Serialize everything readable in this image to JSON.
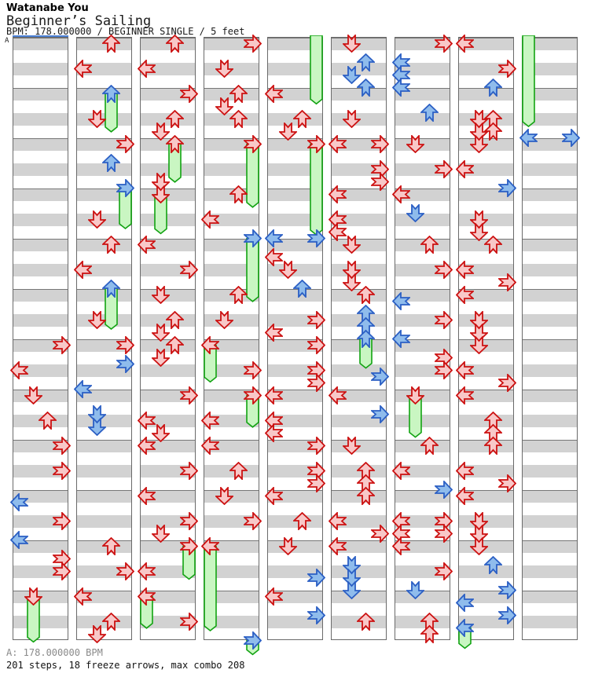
{
  "header": {
    "artist": "Watanabe You",
    "title": "Beginner’s Sailing",
    "meta": "BPM: 178.000000 / BEGINNER SINGLE / 5 feet"
  },
  "footer": {
    "bpm_line": "A: 178.000000 BPM",
    "stats_line": "201 steps, 18 freeze arrows, max combo 208"
  },
  "marker": {
    "label": "A",
    "line_color": "#4a7fd4"
  },
  "colors": {
    "stripe_gray": "#d2d2d2",
    "column_border": "#6a6a6a",
    "measure_line": "#777777",
    "red_stroke": "#cc1111",
    "red_fill": "#f8c8c8",
    "blue_stroke": "#2b5fc4",
    "blue_fill": "#8fbcec",
    "freeze_stroke": "#12a312",
    "freeze_fill": "#c9f6c2"
  },
  "chart_data": {
    "type": "ddr-step-chart",
    "title": "Beginner’s Sailing",
    "artist": "Watanabe You",
    "bpm": 178.0,
    "difficulty": "BEGINNER SINGLE",
    "rating": "5 feet",
    "steps": 201,
    "freeze_arrows": 18,
    "max_combo": 208,
    "columns": 9,
    "rows_per_column": 48,
    "beats_per_measure": 4,
    "lanes": [
      "left",
      "down",
      "up",
      "right"
    ],
    "note_legend": {
      "r": "red quarter note",
      "b": "blue eighth note",
      "freeze": "green hold body"
    },
    "notes": [
      [
        [
          24,
          3,
          "r"
        ],
        [
          26,
          0,
          "r"
        ],
        [
          28,
          1,
          "r"
        ],
        [
          30,
          2,
          "r"
        ],
        [
          32,
          3,
          "r"
        ],
        [
          34,
          3,
          "r"
        ],
        [
          36.5,
          0,
          "b"
        ],
        [
          38,
          3,
          "r"
        ],
        [
          39.5,
          0,
          "b"
        ],
        [
          41,
          3,
          "r"
        ],
        [
          42,
          3,
          "r"
        ],
        [
          44,
          1,
          "r",
          3.4
        ]
      ],
      [
        [
          0,
          2,
          "r"
        ],
        [
          2,
          0,
          "r"
        ],
        [
          4,
          2,
          "b",
          2.8
        ],
        [
          6,
          1,
          "r"
        ],
        [
          8,
          3,
          "r"
        ],
        [
          9.5,
          2,
          "b"
        ],
        [
          11.5,
          3,
          "b",
          3.0
        ],
        [
          14,
          1,
          "r"
        ],
        [
          16,
          2,
          "r"
        ],
        [
          18,
          0,
          "r"
        ],
        [
          19.5,
          2,
          "b",
          3.0
        ],
        [
          22,
          1,
          "r"
        ],
        [
          24,
          3,
          "r"
        ],
        [
          25.5,
          3,
          "b"
        ],
        [
          27.5,
          0,
          "b"
        ],
        [
          29.5,
          1,
          "b"
        ],
        [
          30.5,
          1,
          "b"
        ],
        [
          40,
          2,
          "r"
        ],
        [
          42,
          3,
          "r"
        ],
        [
          44,
          0,
          "r"
        ],
        [
          46,
          2,
          "r"
        ],
        [
          47,
          1,
          "r"
        ]
      ],
      [
        [
          0,
          2,
          "r"
        ],
        [
          2,
          0,
          "r"
        ],
        [
          4,
          3,
          "r"
        ],
        [
          6,
          2,
          "r"
        ],
        [
          7,
          1,
          "r"
        ],
        [
          8,
          2,
          "r",
          2.8
        ],
        [
          11,
          1,
          "r"
        ],
        [
          12,
          1,
          "r",
          2.9
        ],
        [
          16,
          0,
          "r"
        ],
        [
          18,
          3,
          "r"
        ],
        [
          20,
          1,
          "r"
        ],
        [
          22,
          2,
          "r"
        ],
        [
          23,
          1,
          "r"
        ],
        [
          24,
          2,
          "r"
        ],
        [
          25,
          1,
          "r"
        ],
        [
          28,
          3,
          "r"
        ],
        [
          30,
          0,
          "r"
        ],
        [
          31,
          1,
          "r"
        ],
        [
          32,
          0,
          "r"
        ],
        [
          34,
          3,
          "r"
        ],
        [
          36,
          0,
          "r"
        ],
        [
          38,
          3,
          "r"
        ],
        [
          39,
          1,
          "r"
        ],
        [
          40,
          3,
          "r",
          2.4
        ],
        [
          42,
          0,
          "r"
        ],
        [
          44,
          0,
          "r",
          2.3
        ],
        [
          46,
          3,
          "r"
        ]
      ],
      [
        [
          0,
          3,
          "r"
        ],
        [
          2,
          1,
          "r"
        ],
        [
          4,
          2,
          "r"
        ],
        [
          5,
          1,
          "r"
        ],
        [
          6,
          2,
          "r"
        ],
        [
          8,
          3,
          "r",
          4.8
        ],
        [
          12,
          2,
          "r"
        ],
        [
          14,
          0,
          "r"
        ],
        [
          15.5,
          3,
          "b",
          4.8
        ],
        [
          20,
          2,
          "r"
        ],
        [
          22,
          1,
          "r"
        ],
        [
          24,
          0,
          "r",
          2.7
        ],
        [
          26,
          3,
          "r"
        ],
        [
          28,
          3,
          "r",
          2.3
        ],
        [
          30,
          0,
          "r"
        ],
        [
          32,
          0,
          "r"
        ],
        [
          34,
          2,
          "r"
        ],
        [
          36,
          1,
          "r"
        ],
        [
          38,
          3,
          "r"
        ],
        [
          40,
          0,
          "r",
          6.5
        ],
        [
          47.5,
          3,
          "b",
          0.9
        ]
      ],
      [
        [
          4,
          0,
          "r"
        ],
        [
          6,
          2,
          "r"
        ],
        [
          7,
          1,
          "r"
        ],
        [
          8,
          3,
          "r",
          7.0
        ],
        [
          15.5,
          0,
          "b"
        ],
        [
          15.5,
          3,
          "b"
        ],
        [
          17,
          0,
          "r"
        ],
        [
          18,
          1,
          "r"
        ],
        [
          19.5,
          2,
          "b"
        ],
        [
          22,
          3,
          "r"
        ],
        [
          23,
          0,
          "r"
        ],
        [
          24,
          3,
          "r"
        ],
        [
          26,
          3,
          "r"
        ],
        [
          27,
          3,
          "r"
        ],
        [
          28,
          0,
          "r"
        ],
        [
          30,
          0,
          "r"
        ],
        [
          31,
          0,
          "r"
        ],
        [
          32,
          3,
          "r"
        ],
        [
          34,
          3,
          "r"
        ],
        [
          35,
          3,
          "r"
        ],
        [
          36,
          0,
          "r"
        ],
        [
          38,
          2,
          "r"
        ],
        [
          40,
          1,
          "r"
        ],
        [
          42.5,
          3,
          "b"
        ],
        [
          44,
          0,
          "r"
        ],
        [
          45.5,
          3,
          "b"
        ]
      ],
      [
        [
          0,
          1,
          "r"
        ],
        [
          1.5,
          2,
          "b"
        ],
        [
          2.5,
          1,
          "b"
        ],
        [
          3.5,
          2,
          "b"
        ],
        [
          6,
          1,
          "r"
        ],
        [
          8,
          0,
          "r"
        ],
        [
          8,
          3,
          "r"
        ],
        [
          10,
          3,
          "r"
        ],
        [
          11,
          3,
          "r"
        ],
        [
          12,
          0,
          "r"
        ],
        [
          14,
          0,
          "r"
        ],
        [
          15,
          0,
          "r"
        ],
        [
          16,
          1,
          "r"
        ],
        [
          18,
          1,
          "r"
        ],
        [
          19,
          1,
          "r"
        ],
        [
          20,
          2,
          "r"
        ],
        [
          21.5,
          2,
          "b"
        ],
        [
          22.5,
          2,
          "b"
        ],
        [
          23.5,
          2,
          "b",
          2.1
        ],
        [
          26.5,
          3,
          "b"
        ],
        [
          28,
          0,
          "r"
        ],
        [
          29.5,
          3,
          "b"
        ],
        [
          32,
          1,
          "r"
        ],
        [
          34,
          2,
          "r"
        ],
        [
          35,
          2,
          "r"
        ],
        [
          36,
          2,
          "r"
        ],
        [
          38,
          0,
          "r"
        ],
        [
          39,
          3,
          "r"
        ],
        [
          40,
          0,
          "r"
        ],
        [
          41.5,
          1,
          "b"
        ],
        [
          42.5,
          1,
          "b"
        ],
        [
          43.5,
          1,
          "b"
        ],
        [
          46,
          2,
          "r"
        ]
      ],
      [
        [
          0,
          3,
          "r"
        ],
        [
          1.5,
          0,
          "b"
        ],
        [
          2.5,
          0,
          "b"
        ],
        [
          3.5,
          0,
          "b"
        ],
        [
          5.5,
          2,
          "b"
        ],
        [
          8,
          1,
          "r"
        ],
        [
          10,
          3,
          "r"
        ],
        [
          12,
          0,
          "r"
        ],
        [
          13.5,
          1,
          "b"
        ],
        [
          16,
          2,
          "r"
        ],
        [
          18,
          3,
          "r"
        ],
        [
          20.5,
          0,
          "b"
        ],
        [
          22,
          3,
          "r"
        ],
        [
          23.5,
          0,
          "b"
        ],
        [
          25,
          3,
          "r"
        ],
        [
          26,
          3,
          "r"
        ],
        [
          28,
          1,
          "r",
          3.1
        ],
        [
          32,
          2,
          "r"
        ],
        [
          34,
          0,
          "r"
        ],
        [
          35.5,
          3,
          "b"
        ],
        [
          38,
          0,
          "r"
        ],
        [
          38,
          3,
          "r"
        ],
        [
          39,
          0,
          "r"
        ],
        [
          39,
          3,
          "r"
        ],
        [
          40,
          0,
          "r"
        ],
        [
          42,
          3,
          "r"
        ],
        [
          43.5,
          1,
          "b"
        ],
        [
          46,
          2,
          "r"
        ],
        [
          47,
          2,
          "r"
        ]
      ],
      [
        [
          0,
          0,
          "r"
        ],
        [
          2,
          3,
          "r"
        ],
        [
          3.5,
          2,
          "b"
        ],
        [
          6,
          1,
          "r"
        ],
        [
          6,
          2,
          "r"
        ],
        [
          7,
          1,
          "r"
        ],
        [
          7,
          2,
          "r"
        ],
        [
          8,
          1,
          "r"
        ],
        [
          10,
          0,
          "r"
        ],
        [
          11.5,
          3,
          "b"
        ],
        [
          14,
          1,
          "r"
        ],
        [
          15,
          1,
          "r"
        ],
        [
          16,
          2,
          "r"
        ],
        [
          18,
          0,
          "r"
        ],
        [
          19,
          3,
          "r"
        ],
        [
          20,
          0,
          "r"
        ],
        [
          22,
          1,
          "r"
        ],
        [
          23,
          1,
          "r"
        ],
        [
          24,
          1,
          "r"
        ],
        [
          26,
          0,
          "r"
        ],
        [
          27,
          3,
          "r"
        ],
        [
          28,
          0,
          "r"
        ],
        [
          30,
          2,
          "r"
        ],
        [
          31,
          2,
          "r"
        ],
        [
          32,
          2,
          "r"
        ],
        [
          34,
          0,
          "r"
        ],
        [
          35,
          3,
          "r"
        ],
        [
          36,
          0,
          "r"
        ],
        [
          38,
          1,
          "r"
        ],
        [
          39,
          1,
          "r"
        ],
        [
          40,
          1,
          "r"
        ],
        [
          41.5,
          2,
          "b"
        ],
        [
          43.5,
          3,
          "b"
        ],
        [
          44.5,
          0,
          "b"
        ],
        [
          45.5,
          3,
          "b"
        ],
        [
          46.5,
          0,
          "b",
          1.4
        ]
      ],
      [
        [
          7.5,
          0,
          "b"
        ],
        [
          7.5,
          3,
          "b"
        ]
      ]
    ],
    "continued_tails": [
      {
        "column": 5,
        "lane": 3,
        "to_row": 4.8
      },
      {
        "column": 9,
        "lane": 0,
        "to_row": 6.6
      }
    ]
  }
}
